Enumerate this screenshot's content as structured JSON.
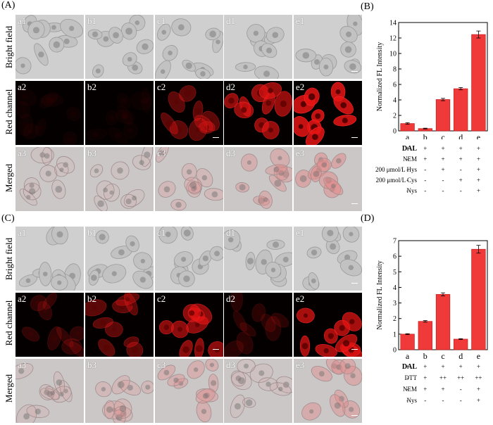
{
  "panels": {
    "A": "(A)",
    "B": "(B)",
    "C": "(C)",
    "D": "(D)"
  },
  "row_labels": [
    "Bright field",
    "Red channel",
    "Merged"
  ],
  "grid_top": {
    "rows": [
      [
        "a1",
        "b1",
        "c1",
        "d1",
        "e1"
      ],
      [
        "a2",
        "b2",
        "c2",
        "d2",
        "e2"
      ],
      [
        "a3",
        "b3",
        "c3",
        "d3",
        "e3"
      ]
    ],
    "red_intensity": [
      0.05,
      0.03,
      0.45,
      0.75,
      1.0
    ]
  },
  "grid_bottom": {
    "rows": [
      [
        "a1",
        "b1",
        "c1",
        "d1",
        "e1"
      ],
      [
        "a2",
        "b2",
        "c2",
        "d2",
        "e2"
      ],
      [
        "a3",
        "b3",
        "c3",
        "d3",
        "e3"
      ]
    ],
    "red_intensity": [
      0.22,
      0.45,
      0.7,
      0.18,
      0.85
    ]
  },
  "chart_data": [
    {
      "type": "bar",
      "panel": "(B)",
      "categories": [
        "a",
        "b",
        "c",
        "d",
        "e"
      ],
      "values": [
        0.95,
        0.3,
        4.05,
        5.45,
        12.45
      ],
      "errors": [
        0.1,
        0.05,
        0.15,
        0.15,
        0.45
      ],
      "ylabel": "Normalized FL Intensity",
      "ylim": [
        0,
        14
      ],
      "yticks": [
        "0",
        "2",
        "4",
        "6",
        "8",
        "10",
        "12",
        "14"
      ],
      "bar_color": "#f03a3a",
      "conditions": [
        {
          "label": "DAL",
          "bold": true,
          "marks": [
            "+",
            "+",
            "+",
            "+",
            "+"
          ]
        },
        {
          "label": "NEM",
          "bold": false,
          "marks": [
            "-",
            "+",
            "+",
            "+",
            "+"
          ]
        },
        {
          "label": "200 μmol/L Hys",
          "bold": false,
          "marks": [
            "-",
            "-",
            "+",
            "-",
            "+"
          ]
        },
        {
          "label": "200 μmol/L Cys",
          "bold": false,
          "marks": [
            "-",
            "-",
            "-",
            "+",
            "+"
          ]
        },
        {
          "label": "Nys",
          "bold": false,
          "marks": [
            "-",
            "-",
            "-",
            "-",
            "+"
          ]
        }
      ]
    },
    {
      "type": "bar",
      "panel": "(D)",
      "categories": [
        "a",
        "b",
        "c",
        "d",
        "e"
      ],
      "values": [
        1.0,
        1.82,
        3.55,
        0.68,
        6.45
      ],
      "errors": [
        0.03,
        0.05,
        0.1,
        0.03,
        0.25
      ],
      "ylabel": "Normalized FL Intensity",
      "ylim": [
        0,
        7
      ],
      "yticks": [
        "0",
        "1",
        "2",
        "3",
        "4",
        "5",
        "6",
        "7"
      ],
      "bar_color": "#f03a3a",
      "conditions": [
        {
          "label": "DAL",
          "bold": true,
          "marks": [
            "+",
            "+",
            "+",
            "+",
            "+"
          ]
        },
        {
          "label": "DTT",
          "bold": false,
          "marks": [
            "-",
            "+",
            "++",
            "++",
            "++"
          ]
        },
        {
          "label": "NEM",
          "bold": false,
          "marks": [
            "-",
            "+",
            "+",
            "-",
            "+"
          ]
        },
        {
          "label": "Nys",
          "bold": false,
          "marks": [
            "-",
            "-",
            "-",
            "-",
            "+"
          ]
        }
      ]
    }
  ]
}
